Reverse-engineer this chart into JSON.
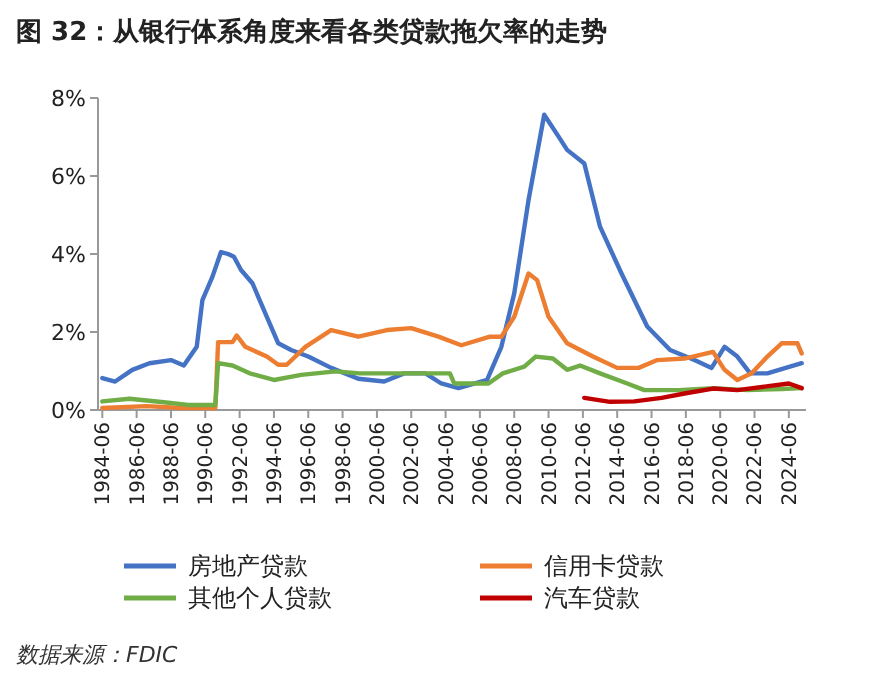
{
  "chart_data": {
    "type": "line",
    "title": "图 32：从银行体系角度来看各类贷款拖欠率的走势",
    "annotations": [
      "数据来源：FDIC"
    ],
    "xlim": [
      "1984-03",
      "2025-06"
    ],
    "xticks": [
      "1984-06",
      "1986-06",
      "1988-06",
      "1990-06",
      "1992-06",
      "1994-06",
      "1996-06",
      "1998-06",
      "2000-06",
      "2002-06",
      "2004-06",
      "2006-06",
      "2008-06",
      "2010-06",
      "2012-06",
      "2014-06",
      "2016-06",
      "2018-06",
      "2020-06",
      "2022-06",
      "2024-06"
    ],
    "ylim": [
      0,
      8
    ],
    "yticks": [
      {
        "value": 0,
        "label": "0%"
      },
      {
        "value": 2,
        "label": "2%"
      },
      {
        "value": 4,
        "label": "4%"
      },
      {
        "value": 6,
        "label": "6%"
      },
      {
        "value": 8,
        "label": "8%"
      }
    ],
    "grid": false,
    "legend": "bottom",
    "line_style": "solid",
    "marker": "none",
    "series": [
      {
        "name": "房地产贷款",
        "color": "#4472c4",
        "x": [
          "1984-06",
          "1985-03",
          "1986-03",
          "1987-03",
          "1988-06",
          "1989-03",
          "1989-12",
          "1990-04",
          "1990-11",
          "1991-05",
          "1991-10",
          "1992-02",
          "1992-07",
          "1993-03",
          "1994-01",
          "1994-09",
          "1995-06",
          "1996-06",
          "1997-10",
          "1999-05",
          "2000-11",
          "2002-01",
          "2003-04",
          "2004-03",
          "2005-03",
          "2006-11",
          "2007-09",
          "2008-06",
          "2009-04",
          "2010-03",
          "2011-01",
          "2011-07",
          "2012-07",
          "2013-06",
          "2014-09",
          "2016-03",
          "2017-07",
          "2018-12",
          "2019-12",
          "2020-09",
          "2021-06",
          "2022-03",
          "2023-03",
          "2025-03"
        ],
        "values": [
          0.82,
          0.73,
          1.03,
          1.2,
          1.28,
          1.14,
          1.62,
          2.82,
          3.42,
          4.05,
          4.0,
          3.93,
          3.59,
          3.25,
          2.39,
          1.71,
          1.54,
          1.37,
          1.08,
          0.8,
          0.73,
          0.94,
          0.94,
          0.68,
          0.56,
          0.77,
          1.62,
          2.99,
          5.38,
          7.57,
          7.01,
          6.67,
          6.32,
          4.7,
          3.5,
          2.14,
          1.54,
          1.28,
          1.08,
          1.62,
          1.37,
          0.94,
          0.94,
          1.2
        ]
      },
      {
        "name": "信用卡贷款",
        "color": "#ed7d31",
        "x": [
          "1984-06",
          "1987-01",
          "1989-01",
          "1991-01",
          "1991-03",
          "1992-01",
          "1992-04",
          "1992-10",
          "1994-01",
          "1994-09",
          "1995-03",
          "1996-04",
          "1997-10",
          "1999-05",
          "2001-01",
          "2002-06",
          "2004-01",
          "2005-05",
          "2007-01",
          "2007-09",
          "2008-06",
          "2009-04",
          "2009-10",
          "2010-06",
          "2011-07",
          "2013-01",
          "2014-06",
          "2015-09",
          "2016-10",
          "2018-05",
          "2020-01",
          "2020-09",
          "2021-06",
          "2022-04",
          "2023-03",
          "2024-01",
          "2024-12",
          "2025-03"
        ],
        "values": [
          0.05,
          0.1,
          0.05,
          0.05,
          1.74,
          1.74,
          1.91,
          1.62,
          1.37,
          1.16,
          1.16,
          1.62,
          2.05,
          1.88,
          2.05,
          2.1,
          1.88,
          1.66,
          1.88,
          1.88,
          2.39,
          3.5,
          3.33,
          2.39,
          1.71,
          1.37,
          1.08,
          1.08,
          1.28,
          1.32,
          1.49,
          1.03,
          0.77,
          0.94,
          1.37,
          1.71,
          1.71,
          1.45
        ]
      },
      {
        "name": "其他个人贷款",
        "color": "#70ad47",
        "x": [
          "1984-06",
          "1986-01",
          "1988-01",
          "1989-06",
          "1991-01",
          "1991-03",
          "1992-01",
          "1993-01",
          "1994-06",
          "1996-01",
          "1998-01",
          "1999-06",
          "2003-01",
          "2004-09",
          "2004-12",
          "2006-12",
          "2007-10",
          "2009-01",
          "2009-09",
          "2010-09",
          "2011-07",
          "2012-04",
          "2013-06",
          "2015-01",
          "2016-01",
          "2018-01",
          "2020-01",
          "2022-01",
          "2024-01",
          "2025-03"
        ],
        "values": [
          0.22,
          0.29,
          0.2,
          0.13,
          0.13,
          1.2,
          1.14,
          0.94,
          0.77,
          0.9,
          0.99,
          0.94,
          0.94,
          0.94,
          0.68,
          0.68,
          0.94,
          1.11,
          1.37,
          1.32,
          1.03,
          1.14,
          0.94,
          0.68,
          0.51,
          0.51,
          0.56,
          0.51,
          0.54,
          0.56
        ]
      },
      {
        "name": "汽车贷款",
        "color": "#c00000",
        "x": [
          "2012-07",
          "2014-01",
          "2015-06",
          "2017-01",
          "2018-06",
          "2020-01",
          "2021-06",
          "2023-01",
          "2024-06",
          "2025-03"
        ],
        "values": [
          0.31,
          0.21,
          0.22,
          0.31,
          0.43,
          0.55,
          0.51,
          0.6,
          0.68,
          0.56
        ]
      }
    ]
  }
}
